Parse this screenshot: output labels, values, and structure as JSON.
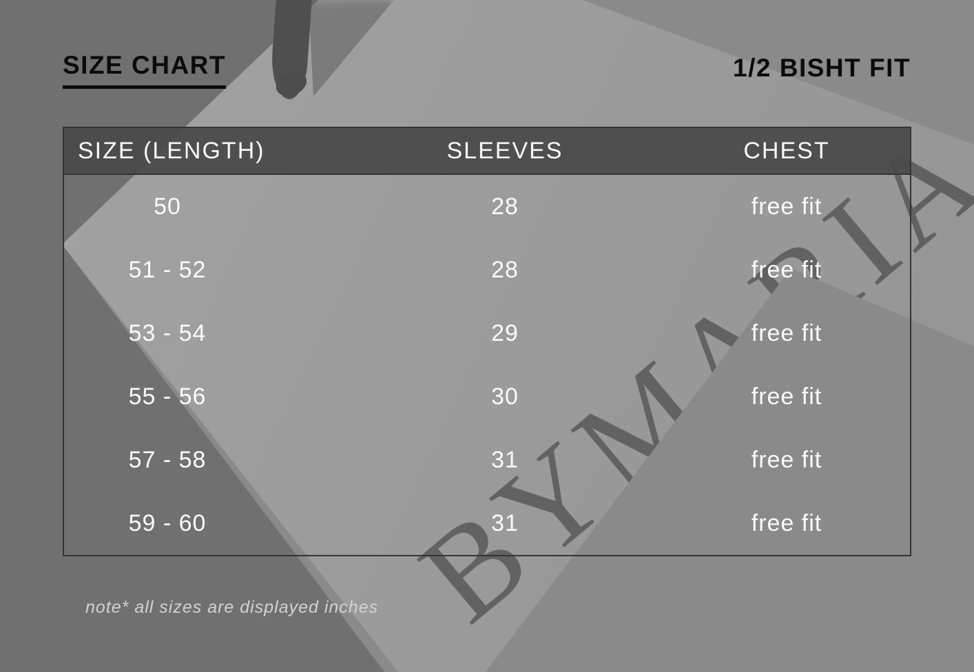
{
  "page": {
    "title": "SIZE CHART",
    "fit_label": "1/2 BISHT FIT",
    "note": "note* all sizes are displayed inches"
  },
  "table": {
    "headers": [
      "SIZE (LENGTH)",
      "SLEEVES",
      "CHEST"
    ],
    "rows": [
      {
        "size": "50",
        "sleeves": "28",
        "chest": "free fit"
      },
      {
        "size": "51 - 52",
        "sleeves": "28",
        "chest": "free fit"
      },
      {
        "size": "53 - 54",
        "sleeves": "29",
        "chest": "free fit"
      },
      {
        "size": "55 - 56",
        "sleeves": "30",
        "chest": "free fit"
      },
      {
        "size": "57 - 58",
        "sleeves": "31",
        "chest": "free fit"
      },
      {
        "size": "59 - 60",
        "sleeves": "31",
        "chest": "free fit"
      }
    ]
  },
  "watermark": {
    "brand_text": "BYMARIAM"
  },
  "colors": {
    "title_text": "#0b0b0b",
    "header_background": "#494949",
    "table_border": "#343434",
    "table_text": "#fbfbfb",
    "note_text": "#d2d2d2",
    "background_gray": "#8a8a8a"
  }
}
